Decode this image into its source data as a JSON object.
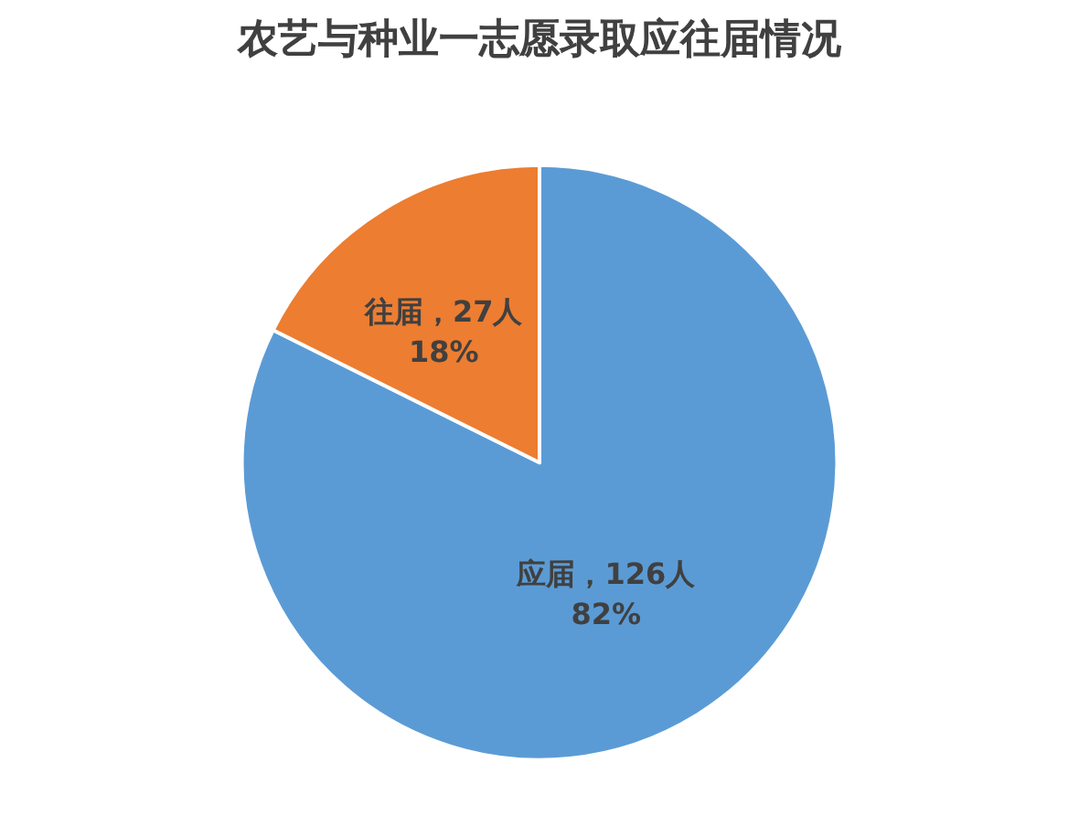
{
  "chart_data": {
    "type": "pie",
    "title": "农艺与种业一志愿录取应往届情况",
    "categories": [
      "应届",
      "往届"
    ],
    "values": [
      126,
      27
    ],
    "colors": [
      "#5b9bd5",
      "#ed7d31"
    ],
    "value_labels": [
      "，126人\n82%",
      "，27人\n18%"
    ],
    "legend": false
  }
}
